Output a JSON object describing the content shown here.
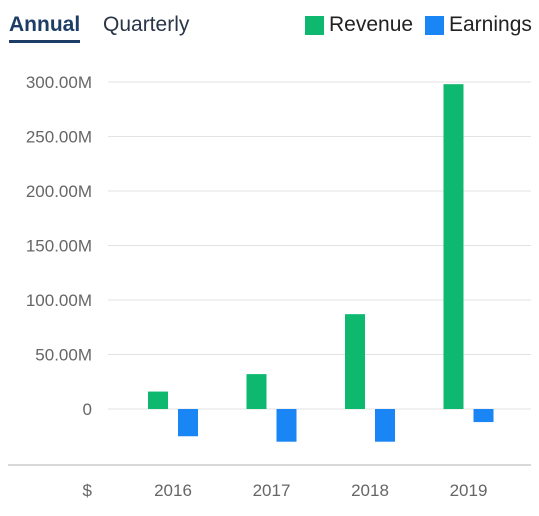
{
  "tabs": {
    "annual_label": "Annual",
    "quarterly_label": "Quarterly",
    "active": "Annual"
  },
  "legend": {
    "revenue_label": "Revenue",
    "earnings_label": "Earnings"
  },
  "colors": {
    "revenue": "#0fb86f",
    "earnings": "#1a86f5",
    "grid": "#e3e3e3",
    "axis": "#cccccc"
  },
  "chart_data": {
    "type": "bar",
    "categories": [
      "2016",
      "2017",
      "2018",
      "2019"
    ],
    "series": [
      {
        "name": "Revenue",
        "values": [
          16,
          32,
          87,
          298
        ]
      },
      {
        "name": "Earnings",
        "values": [
          -25,
          -30,
          -30,
          -12
        ]
      }
    ],
    "value_unit": "M",
    "currency_label": "$",
    "ylim": [
      -50,
      300
    ],
    "yticks": [
      0,
      50,
      100,
      150,
      200,
      250,
      300
    ],
    "ytick_labels": [
      "0",
      "50.00M",
      "100.00M",
      "150.00M",
      "200.00M",
      "250.00M",
      "300.00M"
    ],
    "grid": true,
    "legend_position": "top-right",
    "title": "",
    "xlabel": "",
    "ylabel": ""
  }
}
